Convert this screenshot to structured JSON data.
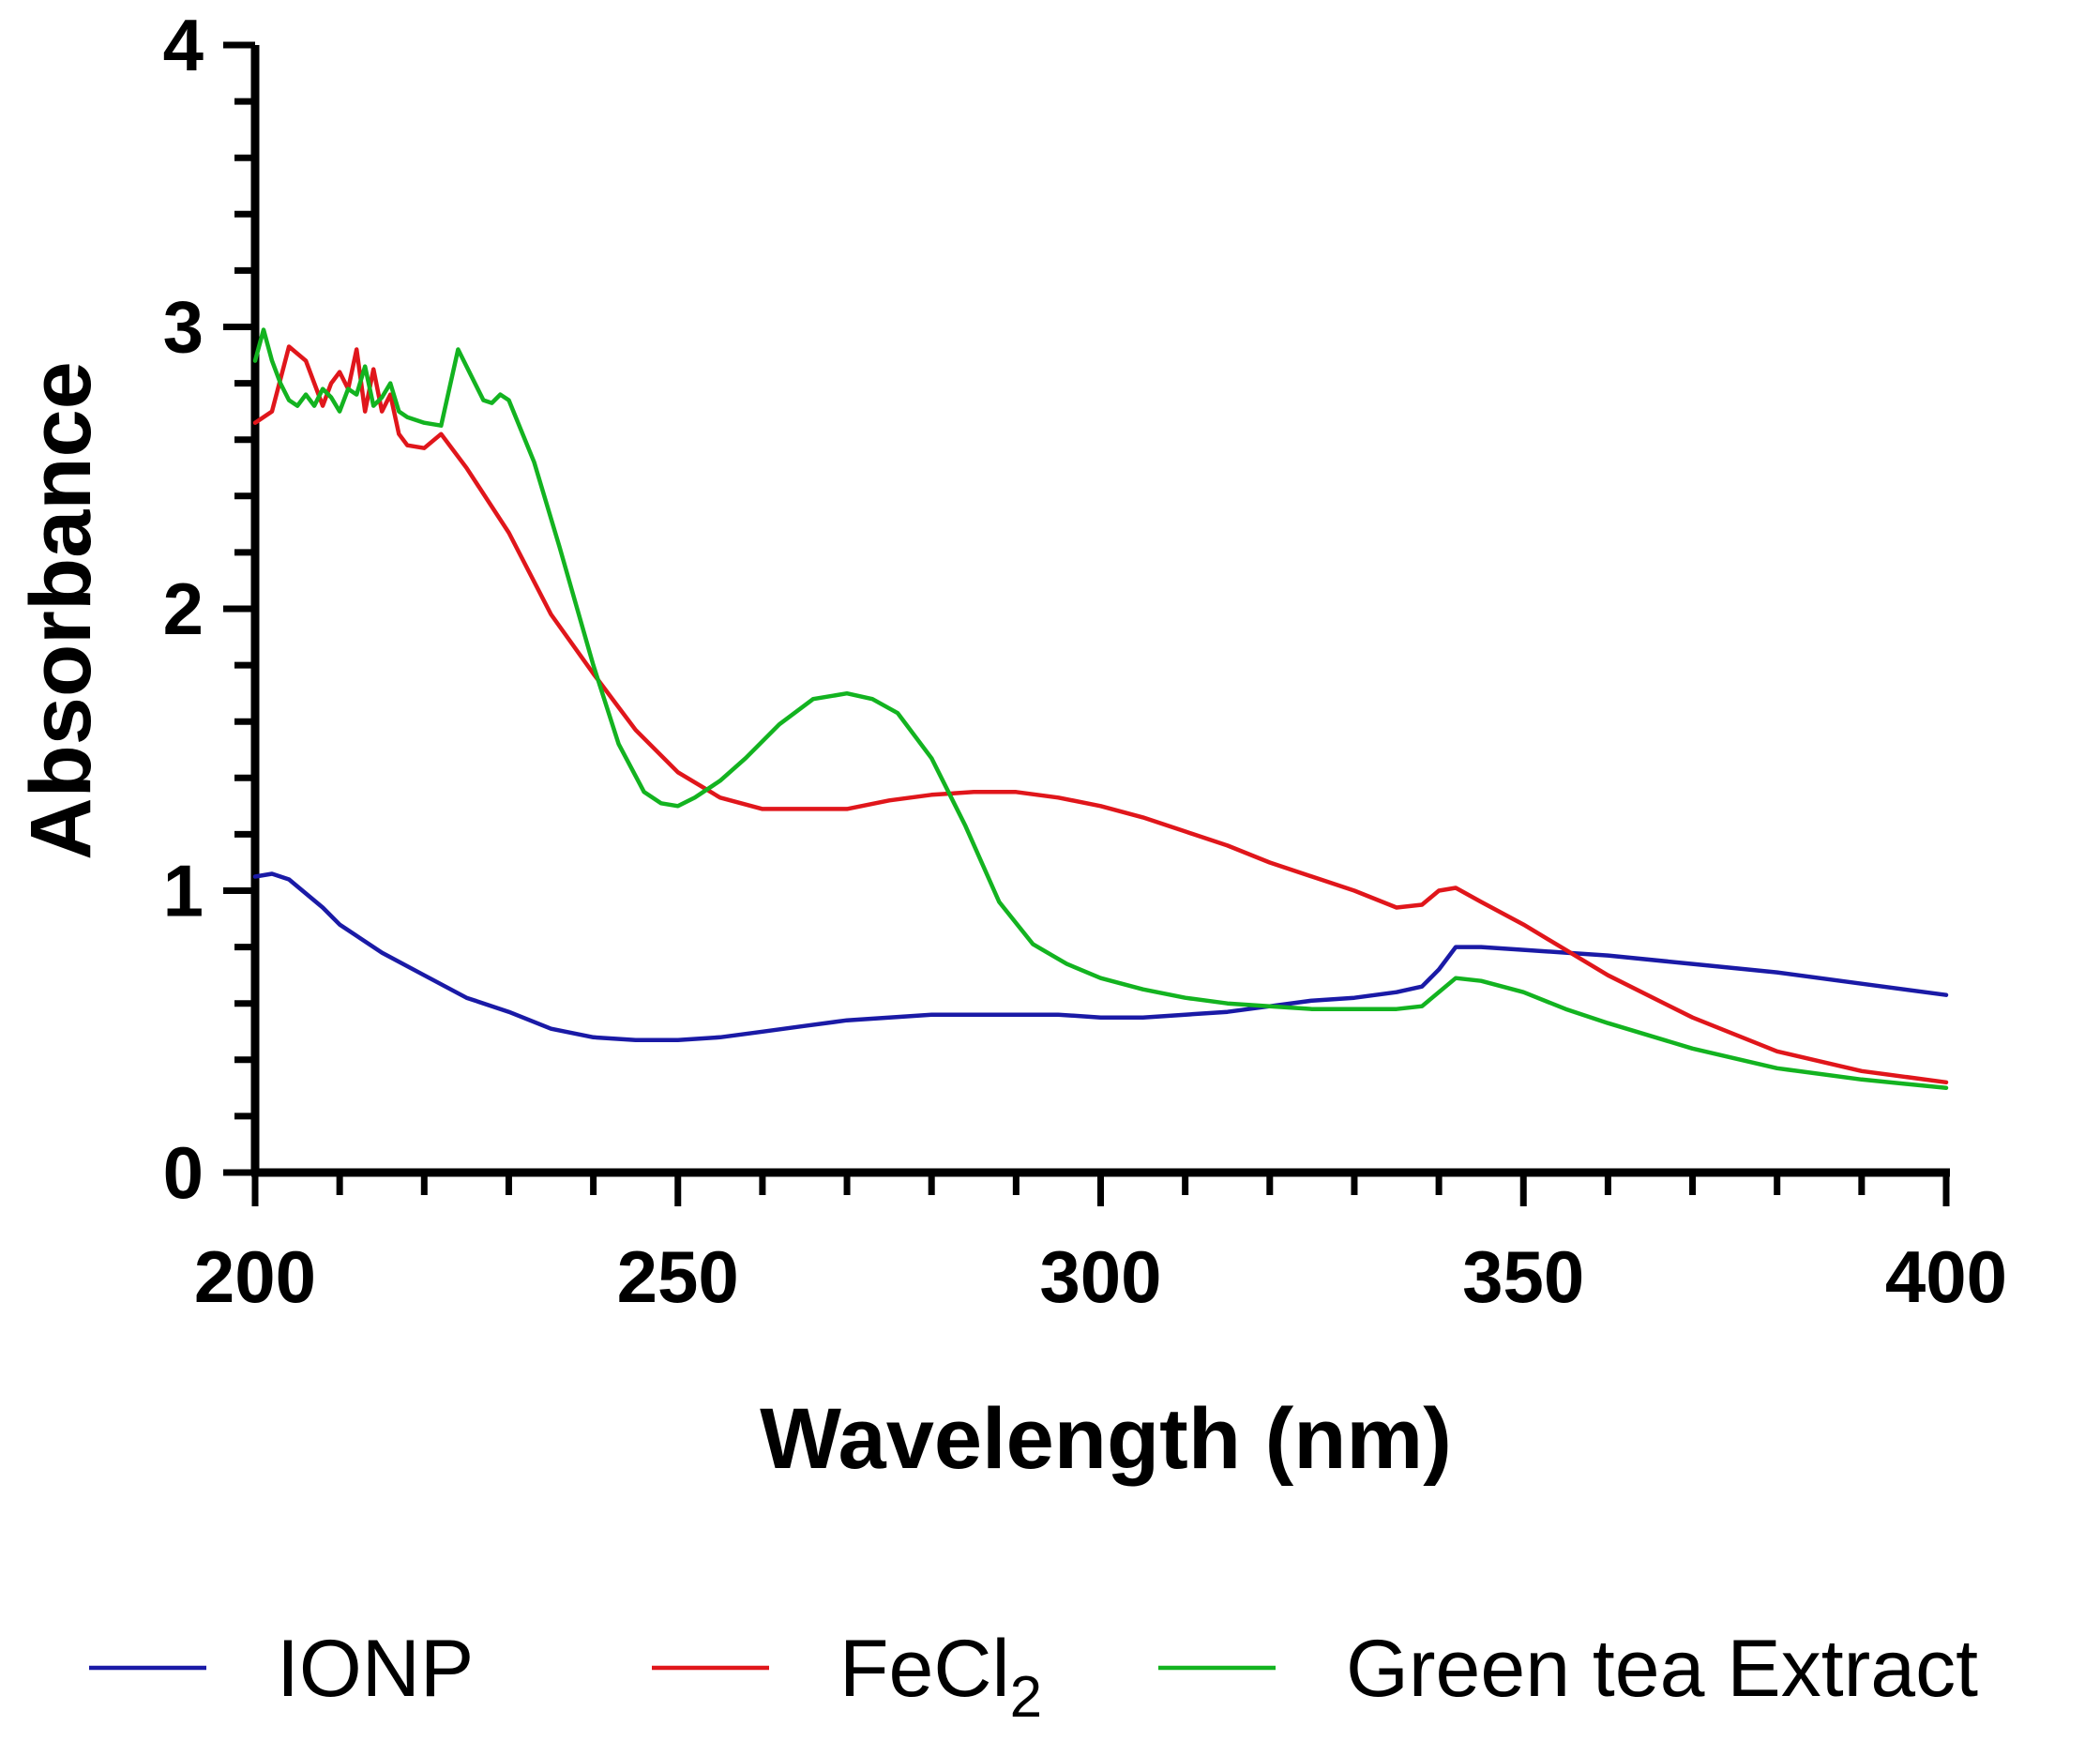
{
  "chart_data": {
    "type": "line",
    "title": "",
    "xlabel": "Wavelength (nm)",
    "ylabel": "Absorbance",
    "xlim": [
      200,
      400
    ],
    "ylim": [
      0,
      4
    ],
    "xticks": [
      200,
      250,
      300,
      350,
      400
    ],
    "yticks": [
      0,
      1,
      2,
      3,
      4
    ],
    "x_minor_step": 10,
    "y_minor_step": 0.2,
    "grid": false,
    "legend_position": "bottom",
    "series": [
      {
        "name": "IONP",
        "label_main": "IONP",
        "label_sub": "",
        "color": "#1a1aa6",
        "x": [
          200,
          202,
          204,
          206,
          208,
          210,
          215,
          220,
          225,
          230,
          235,
          240,
          245,
          250,
          255,
          260,
          265,
          270,
          275,
          280,
          285,
          290,
          295,
          300,
          305,
          310,
          315,
          320,
          325,
          330,
          335,
          338,
          340,
          342,
          345,
          350,
          355,
          360,
          370,
          380,
          390,
          400
        ],
        "y": [
          1.05,
          1.06,
          1.04,
          0.99,
          0.94,
          0.88,
          0.78,
          0.7,
          0.62,
          0.57,
          0.51,
          0.48,
          0.47,
          0.47,
          0.48,
          0.5,
          0.52,
          0.54,
          0.55,
          0.56,
          0.56,
          0.56,
          0.56,
          0.55,
          0.55,
          0.56,
          0.57,
          0.59,
          0.61,
          0.62,
          0.64,
          0.66,
          0.72,
          0.8,
          0.8,
          0.79,
          0.78,
          0.77,
          0.74,
          0.71,
          0.67,
          0.63
        ]
      },
      {
        "name": "FeCl2",
        "label_main": "FeCl",
        "label_sub": "2",
        "color": "#e0161b",
        "x": [
          200,
          202,
          204,
          206,
          208,
          209,
          210,
          211,
          212,
          213,
          214,
          215,
          216,
          217,
          218,
          220,
          222,
          225,
          230,
          235,
          240,
          245,
          250,
          255,
          260,
          265,
          270,
          275,
          280,
          285,
          290,
          295,
          300,
          305,
          310,
          315,
          320,
          325,
          330,
          335,
          338,
          340,
          342,
          345,
          350,
          355,
          360,
          370,
          380,
          390,
          400
        ],
        "y": [
          2.66,
          2.7,
          2.93,
          2.88,
          2.72,
          2.8,
          2.84,
          2.78,
          2.92,
          2.7,
          2.85,
          2.7,
          2.76,
          2.62,
          2.58,
          2.57,
          2.62,
          2.5,
          2.27,
          1.98,
          1.77,
          1.57,
          1.42,
          1.33,
          1.29,
          1.29,
          1.29,
          1.32,
          1.34,
          1.35,
          1.35,
          1.33,
          1.3,
          1.26,
          1.21,
          1.16,
          1.1,
          1.05,
          1.0,
          0.94,
          0.95,
          1.0,
          1.01,
          0.96,
          0.88,
          0.79,
          0.7,
          0.55,
          0.43,
          0.36,
          0.32
        ]
      },
      {
        "name": "Green tea Extract",
        "label_main": "Green tea Extract",
        "label_sub": "",
        "color": "#13b320",
        "x": [
          200,
          201,
          202,
          203,
          204,
          205,
          206,
          207,
          208,
          209,
          210,
          211,
          212,
          213,
          214,
          215,
          216,
          217,
          218,
          220,
          222,
          224,
          226,
          227,
          228,
          229,
          230,
          233,
          236,
          240,
          243,
          246,
          248,
          250,
          252,
          255,
          258,
          262,
          266,
          270,
          273,
          276,
          280,
          284,
          288,
          292,
          296,
          300,
          305,
          310,
          315,
          320,
          325,
          330,
          335,
          338,
          340,
          342,
          345,
          350,
          355,
          360,
          370,
          380,
          390,
          400
        ],
        "y": [
          2.88,
          2.99,
          2.88,
          2.8,
          2.74,
          2.72,
          2.76,
          2.72,
          2.78,
          2.75,
          2.7,
          2.78,
          2.76,
          2.86,
          2.72,
          2.75,
          2.8,
          2.7,
          2.68,
          2.66,
          2.65,
          2.92,
          2.8,
          2.74,
          2.73,
          2.76,
          2.74,
          2.52,
          2.22,
          1.8,
          1.52,
          1.35,
          1.31,
          1.3,
          1.33,
          1.39,
          1.47,
          1.59,
          1.68,
          1.7,
          1.68,
          1.63,
          1.47,
          1.23,
          0.96,
          0.81,
          0.74,
          0.69,
          0.65,
          0.62,
          0.6,
          0.59,
          0.58,
          0.58,
          0.58,
          0.59,
          0.64,
          0.69,
          0.68,
          0.64,
          0.58,
          0.53,
          0.44,
          0.37,
          0.33,
          0.3
        ]
      }
    ]
  }
}
